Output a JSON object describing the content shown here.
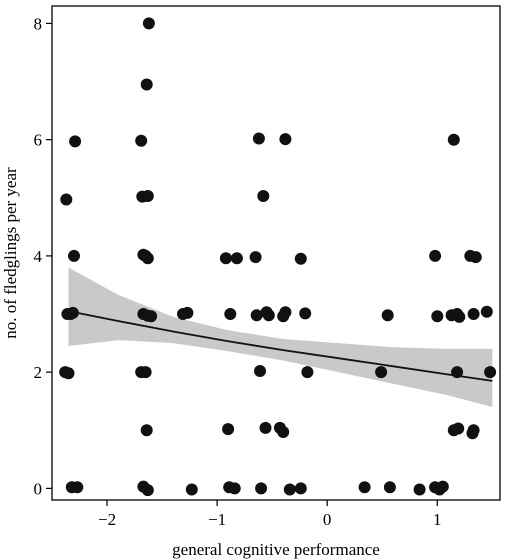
{
  "chart_data": {
    "type": "scatter",
    "title": "",
    "xlabel": "general cognitive performance",
    "ylabel": "no. of fledglings per year",
    "xlim": [
      -2.5,
      1.57
    ],
    "ylim": [
      -0.2,
      8.3
    ],
    "xticks": [
      -2,
      -1,
      0,
      1
    ],
    "xtick_labels": [
      "−2",
      "−1",
      "0",
      "1"
    ],
    "yticks": [
      0,
      2,
      4,
      6,
      8
    ],
    "ytick_labels": [
      "0",
      "2",
      "4",
      "6",
      "8"
    ],
    "grid": false,
    "legend": "none",
    "colors": {
      "points": "#111111",
      "fit_line": "#111111",
      "ci_band": "#c9c9c9",
      "frame": "#000000"
    },
    "points": [
      {
        "x": -2.37,
        "y": 4.97
      },
      {
        "x": -2.33,
        "y": 3.0
      },
      {
        "x": -2.36,
        "y": 3.0
      },
      {
        "x": -2.31,
        "y": 3.02
      },
      {
        "x": -2.29,
        "y": 5.97
      },
      {
        "x": -2.3,
        "y": 4.0
      },
      {
        "x": -2.38,
        "y": 2.0
      },
      {
        "x": -2.35,
        "y": 1.98
      },
      {
        "x": -2.32,
        "y": 0.02
      },
      {
        "x": -2.27,
        "y": 0.02
      },
      {
        "x": -1.62,
        "y": 8.0
      },
      {
        "x": -1.64,
        "y": 6.95
      },
      {
        "x": -1.69,
        "y": 5.98
      },
      {
        "x": -1.68,
        "y": 5.02
      },
      {
        "x": -1.63,
        "y": 5.03
      },
      {
        "x": -1.67,
        "y": 4.02
      },
      {
        "x": -1.65,
        "y": 4.0
      },
      {
        "x": -1.63,
        "y": 3.96
      },
      {
        "x": -1.67,
        "y": 3.0
      },
      {
        "x": -1.63,
        "y": 2.97
      },
      {
        "x": -1.6,
        "y": 2.96
      },
      {
        "x": -1.69,
        "y": 2.0
      },
      {
        "x": -1.65,
        "y": 2.0
      },
      {
        "x": -1.64,
        "y": 1.0
      },
      {
        "x": -1.67,
        "y": 0.03
      },
      {
        "x": -1.63,
        "y": -0.03
      },
      {
        "x": -1.31,
        "y": 3.0
      },
      {
        "x": -1.27,
        "y": 3.02
      },
      {
        "x": -1.23,
        "y": -0.02
      },
      {
        "x": -0.92,
        "y": 3.96
      },
      {
        "x": -0.82,
        "y": 3.96
      },
      {
        "x": -0.88,
        "y": 3.0
      },
      {
        "x": -0.9,
        "y": 1.02
      },
      {
        "x": -0.89,
        "y": 0.02
      },
      {
        "x": -0.84,
        "y": 0.0
      },
      {
        "x": -0.62,
        "y": 6.02
      },
      {
        "x": -0.38,
        "y": 6.01
      },
      {
        "x": -0.58,
        "y": 5.03
      },
      {
        "x": -0.65,
        "y": 3.98
      },
      {
        "x": -0.24,
        "y": 3.95
      },
      {
        "x": -0.64,
        "y": 2.98
      },
      {
        "x": -0.55,
        "y": 3.03
      },
      {
        "x": -0.53,
        "y": 2.98
      },
      {
        "x": -0.4,
        "y": 2.96
      },
      {
        "x": -0.38,
        "y": 3.03
      },
      {
        "x": -0.2,
        "y": 3.01
      },
      {
        "x": -0.61,
        "y": 2.02
      },
      {
        "x": -0.18,
        "y": 2.0
      },
      {
        "x": -0.56,
        "y": 1.04
      },
      {
        "x": -0.43,
        "y": 1.04
      },
      {
        "x": -0.4,
        "y": 0.97
      },
      {
        "x": -0.6,
        "y": 0.0
      },
      {
        "x": -0.34,
        "y": -0.02
      },
      {
        "x": -0.24,
        "y": 0.0
      },
      {
        "x": 0.49,
        "y": 2.0
      },
      {
        "x": 0.55,
        "y": 2.98
      },
      {
        "x": 0.34,
        "y": 0.02
      },
      {
        "x": 0.57,
        "y": 0.02
      },
      {
        "x": 0.84,
        "y": -0.02
      },
      {
        "x": 0.98,
        "y": 4.0
      },
      {
        "x": 1.0,
        "y": 2.96
      },
      {
        "x": 0.98,
        "y": 0.02
      },
      {
        "x": 1.02,
        "y": -0.02
      },
      {
        "x": 1.05,
        "y": 0.03
      },
      {
        "x": 1.15,
        "y": 6.0
      },
      {
        "x": 1.13,
        "y": 2.98
      },
      {
        "x": 1.18,
        "y": 3.0
      },
      {
        "x": 1.2,
        "y": 2.95
      },
      {
        "x": 1.3,
        "y": 4.0
      },
      {
        "x": 1.35,
        "y": 3.98
      },
      {
        "x": 1.33,
        "y": 3.0
      },
      {
        "x": 1.45,
        "y": 3.04
      },
      {
        "x": 1.18,
        "y": 2.0
      },
      {
        "x": 1.48,
        "y": 2.0
      },
      {
        "x": 1.15,
        "y": 1.0
      },
      {
        "x": 1.19,
        "y": 1.03
      },
      {
        "x": 1.33,
        "y": 1.0
      },
      {
        "x": 1.32,
        "y": 0.95
      }
    ],
    "fit_line": {
      "x": [
        -2.35,
        -1.9,
        -1.4,
        -0.9,
        -0.4,
        0.1,
        0.6,
        1.1,
        1.5
      ],
      "y": [
        3.05,
        2.88,
        2.7,
        2.53,
        2.38,
        2.24,
        2.1,
        1.96,
        1.85
      ]
    },
    "ci_band": {
      "x": [
        -2.35,
        -1.9,
        -1.4,
        -0.9,
        -0.4,
        0.1,
        0.6,
        1.1,
        1.5
      ],
      "lower": [
        2.45,
        2.55,
        2.5,
        2.36,
        2.2,
        2.0,
        1.8,
        1.6,
        1.4
      ],
      "upper": [
        3.8,
        3.33,
        2.95,
        2.72,
        2.57,
        2.5,
        2.43,
        2.4,
        2.4
      ]
    }
  }
}
